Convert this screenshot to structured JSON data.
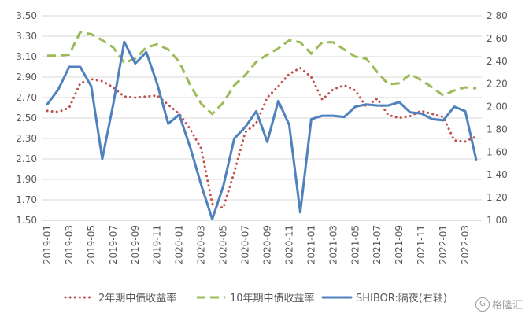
{
  "chart_data": {
    "type": "line",
    "title": "",
    "xlabel": "",
    "ylabel": "",
    "y_left": {
      "min": 1.5,
      "max": 3.5,
      "ticks": [
        "3.50",
        "3.30",
        "3.10",
        "2.90",
        "2.70",
        "2.50",
        "2.30",
        "2.10",
        "1.90",
        "1.70",
        "1.50"
      ]
    },
    "y_right": {
      "min": 1.0,
      "max": 2.8,
      "ticks": [
        "2.80",
        "2.60",
        "2.40",
        "2.20",
        "2.00",
        "1.80",
        "1.60",
        "1.40",
        "1.20",
        "1.00"
      ]
    },
    "x_labels": [
      "2019-01",
      "2019-03",
      "2019-05",
      "2019-07",
      "2019-09",
      "2019-11",
      "2020-01",
      "2020-03",
      "2020-05",
      "2020-07",
      "2020-09",
      "2020-11",
      "2021-01",
      "2021-03",
      "2021-05",
      "2021-07",
      "2021-09",
      "2021-11",
      "2022-01",
      "2022-03"
    ],
    "x": [
      "2019-01",
      "2019-02",
      "2019-03",
      "2019-04",
      "2019-05",
      "2019-06",
      "2019-07",
      "2019-08",
      "2019-09",
      "2019-10",
      "2019-11",
      "2019-12",
      "2020-01",
      "2020-02",
      "2020-03",
      "2020-04",
      "2020-05",
      "2020-06",
      "2020-07",
      "2020-08",
      "2020-09",
      "2020-10",
      "2020-11",
      "2020-12",
      "2021-01",
      "2021-02",
      "2021-03",
      "2021-04",
      "2021-05",
      "2021-06",
      "2021-07",
      "2021-08",
      "2021-09",
      "2021-10",
      "2021-11",
      "2021-12",
      "2022-01",
      "2022-02",
      "2022-03",
      "2022-04"
    ],
    "series": [
      {
        "name": "2年期中债收益率",
        "axis": "left",
        "color": "#c0504d",
        "style": "dotted",
        "values": [
          2.57,
          2.56,
          2.6,
          2.84,
          2.88,
          2.86,
          2.8,
          2.71,
          2.7,
          2.71,
          2.72,
          2.63,
          2.54,
          2.39,
          2.2,
          1.66,
          1.62,
          1.97,
          2.36,
          2.45,
          2.7,
          2.81,
          2.93,
          2.99,
          2.9,
          2.68,
          2.78,
          2.82,
          2.77,
          2.61,
          2.69,
          2.53,
          2.5,
          2.52,
          2.57,
          2.54,
          2.51,
          2.28,
          2.27,
          2.32
        ]
      },
      {
        "name": "10年期中债收益率",
        "axis": "left",
        "color": "#9bbb59",
        "style": "dashed",
        "values": [
          3.11,
          3.11,
          3.12,
          3.34,
          3.32,
          3.26,
          3.19,
          3.04,
          3.08,
          3.19,
          3.22,
          3.17,
          3.05,
          2.82,
          2.64,
          2.54,
          2.65,
          2.82,
          2.92,
          3.05,
          3.12,
          3.18,
          3.26,
          3.24,
          3.13,
          3.24,
          3.24,
          3.17,
          3.1,
          3.08,
          2.95,
          2.83,
          2.84,
          2.93,
          2.87,
          2.8,
          2.72,
          2.77,
          2.8,
          2.79
        ]
      },
      {
        "name": "SHIBOR:隔夜(右轴)",
        "axis": "right",
        "color": "#4f81bd",
        "style": "solid",
        "values": [
          2.02,
          2.15,
          2.35,
          2.35,
          2.18,
          1.54,
          2.02,
          2.57,
          2.38,
          2.48,
          2.2,
          1.85,
          1.93,
          1.64,
          1.31,
          1.01,
          1.3,
          1.72,
          1.82,
          1.96,
          1.69,
          2.05,
          1.84,
          1.07,
          1.89,
          1.92,
          1.92,
          1.91,
          2.0,
          2.02,
          2.01,
          2.01,
          2.04,
          1.95,
          1.94,
          1.89,
          1.88,
          2.0,
          1.96,
          1.53
        ]
      }
    ],
    "legend_position": "bottom",
    "grid": "horizontal"
  },
  "brand": {
    "mark": "G",
    "text": "格隆汇"
  }
}
